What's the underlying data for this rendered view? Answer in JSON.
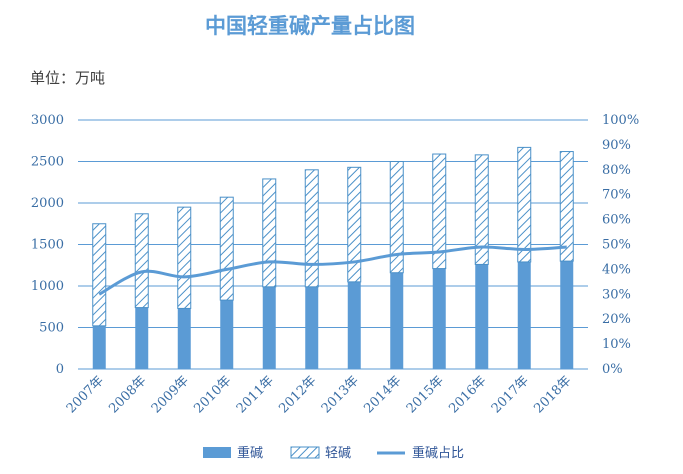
{
  "title": "中国轻重碱产量占比图",
  "unit_label": "单位：万吨",
  "chart_data": {
    "type": "bar",
    "stacked": true,
    "categories": [
      "2007年",
      "2008年",
      "2009年",
      "2010年",
      "2011年",
      "2012年",
      "2013年",
      "2014年",
      "2015年",
      "2016年",
      "2017年",
      "2018年"
    ],
    "series": [
      {
        "name": "重碱",
        "kind": "bar",
        "axis": "left",
        "values": [
          520,
          740,
          730,
          830,
          990,
          990,
          1050,
          1160,
          1210,
          1260,
          1290,
          1300
        ]
      },
      {
        "name": "轻碱",
        "kind": "bar",
        "axis": "left",
        "values": [
          1230,
          1130,
          1220,
          1240,
          1300,
          1410,
          1380,
          1340,
          1380,
          1320,
          1380,
          1320
        ]
      },
      {
        "name": "重碱占比",
        "kind": "line",
        "axis": "right",
        "values": [
          0.3,
          0.39,
          0.37,
          0.4,
          0.43,
          0.42,
          0.43,
          0.46,
          0.47,
          0.49,
          0.48,
          0.49
        ]
      }
    ],
    "y_left": {
      "min": 0,
      "max": 3000,
      "ticks": [
        "0",
        "500",
        "1000",
        "1500",
        "2000",
        "2500",
        "3000"
      ]
    },
    "y_right": {
      "min": 0,
      "max": 1,
      "ticks": [
        "0%",
        "10%",
        "20%",
        "30%",
        "40%",
        "50%",
        "60%",
        "70%",
        "80%",
        "90%",
        "100%"
      ]
    },
    "grid": true,
    "legend_position": "bottom",
    "colors": {
      "solid": "#5b9bd5",
      "hatch": "#4a90c8",
      "line": "#5b9bd5",
      "grid": "#5b9bd5",
      "tick": "#3a6ea5"
    }
  }
}
